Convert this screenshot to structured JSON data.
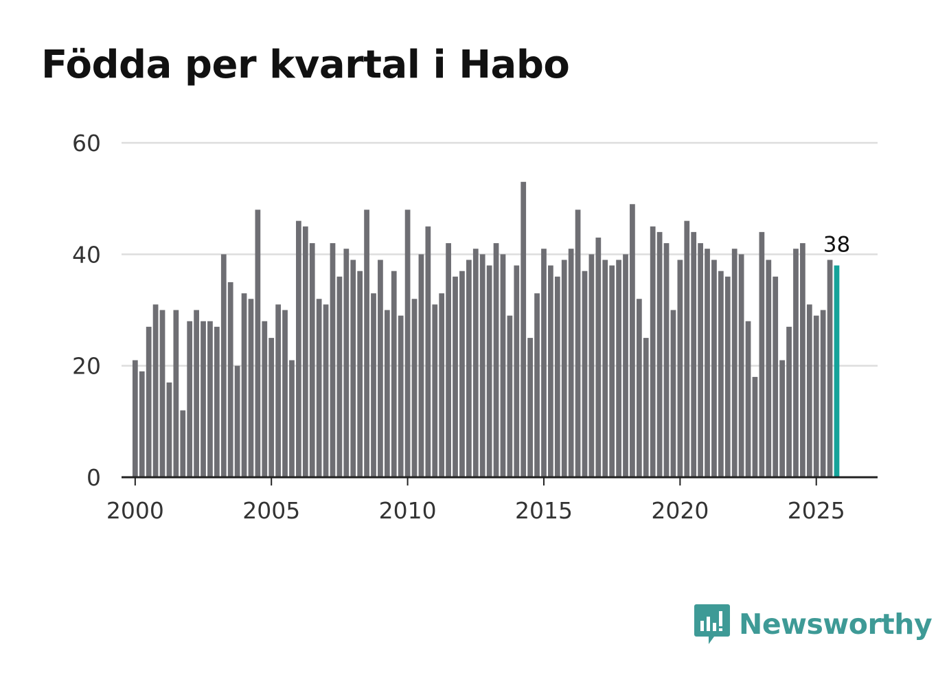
{
  "title": "Födda per kvartal i Habo",
  "brand": {
    "name": "Newsworthy",
    "icon": "newsworthy-logo-icon",
    "color": "#3e9a96"
  },
  "colors": {
    "bar": "#6e6e73",
    "highlight": "#14a39a",
    "grid": "#dddddd",
    "axis": "#222222",
    "text": "#333333"
  },
  "chart_data": {
    "type": "bar",
    "title": "Födda per kvartal i Habo",
    "xlabel": "",
    "ylabel": "",
    "ylim": [
      0,
      60
    ],
    "xlim": [
      1999.5,
      2027.25
    ],
    "y_ticks": [
      0,
      20,
      40,
      60
    ],
    "x_ticks": [
      2000,
      2005,
      2010,
      2015,
      2020,
      2025
    ],
    "grid": true,
    "start_year": 2000,
    "start_quarter": 1,
    "values": [
      21,
      19,
      27,
      31,
      30,
      17,
      30,
      12,
      28,
      30,
      28,
      28,
      27,
      40,
      35,
      20,
      33,
      32,
      48,
      28,
      25,
      31,
      30,
      21,
      46,
      45,
      42,
      32,
      31,
      42,
      36,
      41,
      39,
      37,
      48,
      33,
      39,
      30,
      37,
      29,
      48,
      32,
      40,
      45,
      31,
      33,
      42,
      36,
      37,
      39,
      41,
      40,
      38,
      42,
      40,
      29,
      38,
      53,
      25,
      33,
      41,
      38,
      36,
      39,
      41,
      48,
      37,
      40,
      43,
      39,
      38,
      39,
      40,
      49,
      32,
      25,
      45,
      44,
      42,
      30,
      39,
      46,
      44,
      42,
      41,
      39,
      37,
      36,
      41,
      40,
      28,
      18,
      44,
      39,
      36,
      21,
      27,
      41,
      42,
      31,
      29,
      30,
      39,
      38
    ],
    "highlight_index": 103,
    "annotation": {
      "label": "38",
      "index": 103
    }
  }
}
